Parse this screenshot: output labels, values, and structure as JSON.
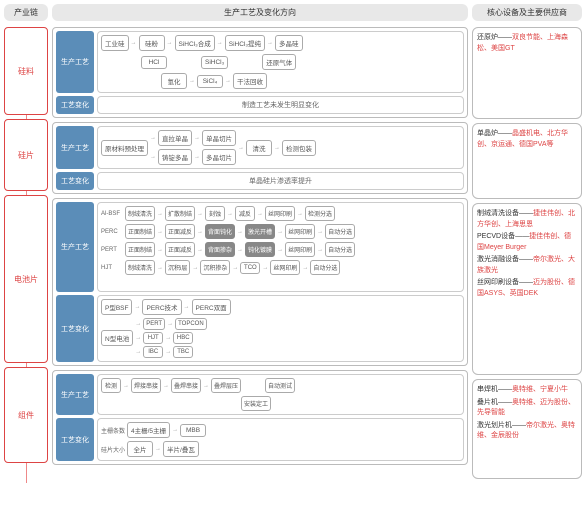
{
  "headers": {
    "chain": "产业链",
    "process": "生产工艺及变化方向",
    "equip": "核心设备及主要供应商"
  },
  "chain": [
    "硅料",
    "硅片",
    "电池片",
    "组件"
  ],
  "tags": {
    "process": "生产工艺",
    "change": "工艺变化"
  },
  "silicon_material": {
    "row1": [
      "工业硅",
      "硅粉",
      "SiHCl₃合成",
      "SiHCl₃提纯",
      "多晶硅"
    ],
    "row2": [
      "HCl",
      "SiHCl₃",
      "还原气体"
    ],
    "row3": [
      "氢化",
      "SiCl₄",
      "干法回收"
    ],
    "change": "制造工艺未发生明显变化"
  },
  "wafer": {
    "top": [
      "直拉单晶",
      "单晶切片"
    ],
    "bot": [
      "铸锭多晶",
      "多晶切片"
    ],
    "left": "原材料预处理",
    "right": [
      "清洗",
      "检测包装"
    ],
    "change": "单晶硅片渗透率提升"
  },
  "cell": {
    "rows": [
      {
        "label": "Al-BSF",
        "nodes": [
          "制绒清洗",
          "扩散制结",
          "刻蚀",
          "减反",
          "丝网印刷",
          "检测分选"
        ]
      },
      {
        "label": "PERC",
        "nodes": [
          "正面制结",
          "正面减反",
          "背面钝化",
          "激光开槽",
          "丝网印刷",
          "自动分选"
        ]
      },
      {
        "label": "PERT",
        "nodes": [
          "正面制结",
          "正面减反",
          "背面掺杂",
          "钝化镀膜",
          "丝网印刷",
          "自动分选"
        ]
      },
      {
        "label": "HJT",
        "nodes": [
          "制绒清洗",
          "沉积i层",
          "沉积掺杂",
          "TCO",
          "丝网印刷",
          "自动分选"
        ]
      }
    ],
    "tree": {
      "p": "P型BSF",
      "p_children": [
        "PERC技术",
        "PERC双面"
      ],
      "n": "N型电池",
      "n_children": [
        "PERT",
        "HJT",
        "IBC"
      ],
      "n_right": [
        "TOPCON",
        "HBC",
        "TBC"
      ]
    }
  },
  "module": {
    "row1": [
      "检测",
      "焊接串接",
      "叠焊串接",
      "叠焊层压",
      "自动测试"
    ],
    "row2": [
      "安装定工"
    ],
    "busbar": {
      "label": "主栅条数",
      "a": "4主栅/5主栅",
      "b": "MBB"
    },
    "wafer": {
      "label": "硅片大小",
      "a": "全片",
      "b": "半片/叠瓦"
    }
  },
  "equipment": [
    [
      {
        "k": "还原炉",
        "v": "双良节能、上海森松、美国GT"
      }
    ],
    [
      {
        "k": "单晶炉",
        "v": "晶盛机电、北方华创、京运通、德国PVA等"
      }
    ],
    [
      {
        "k": "制绒清洗设备",
        "v": "捷佳伟创、北方华创、上海思恩"
      },
      {
        "k": "PECVD设备",
        "v": "捷佳伟创、德国Meyer Burger"
      },
      {
        "k": "激光消融设备",
        "v": "帝尔激光、大族激光"
      },
      {
        "k": "丝网印刷设备",
        "v": "迈为股份、德国ASYS、英国DEK"
      }
    ],
    [
      {
        "k": "串焊机",
        "v": "奥特维、宁夏小牛"
      },
      {
        "k": "叠片机",
        "v": "奥特维、迈为股份、先导智能"
      },
      {
        "k": "激光划片机",
        "v": "帝尔激光、奥特维、金辰股份"
      }
    ]
  ]
}
